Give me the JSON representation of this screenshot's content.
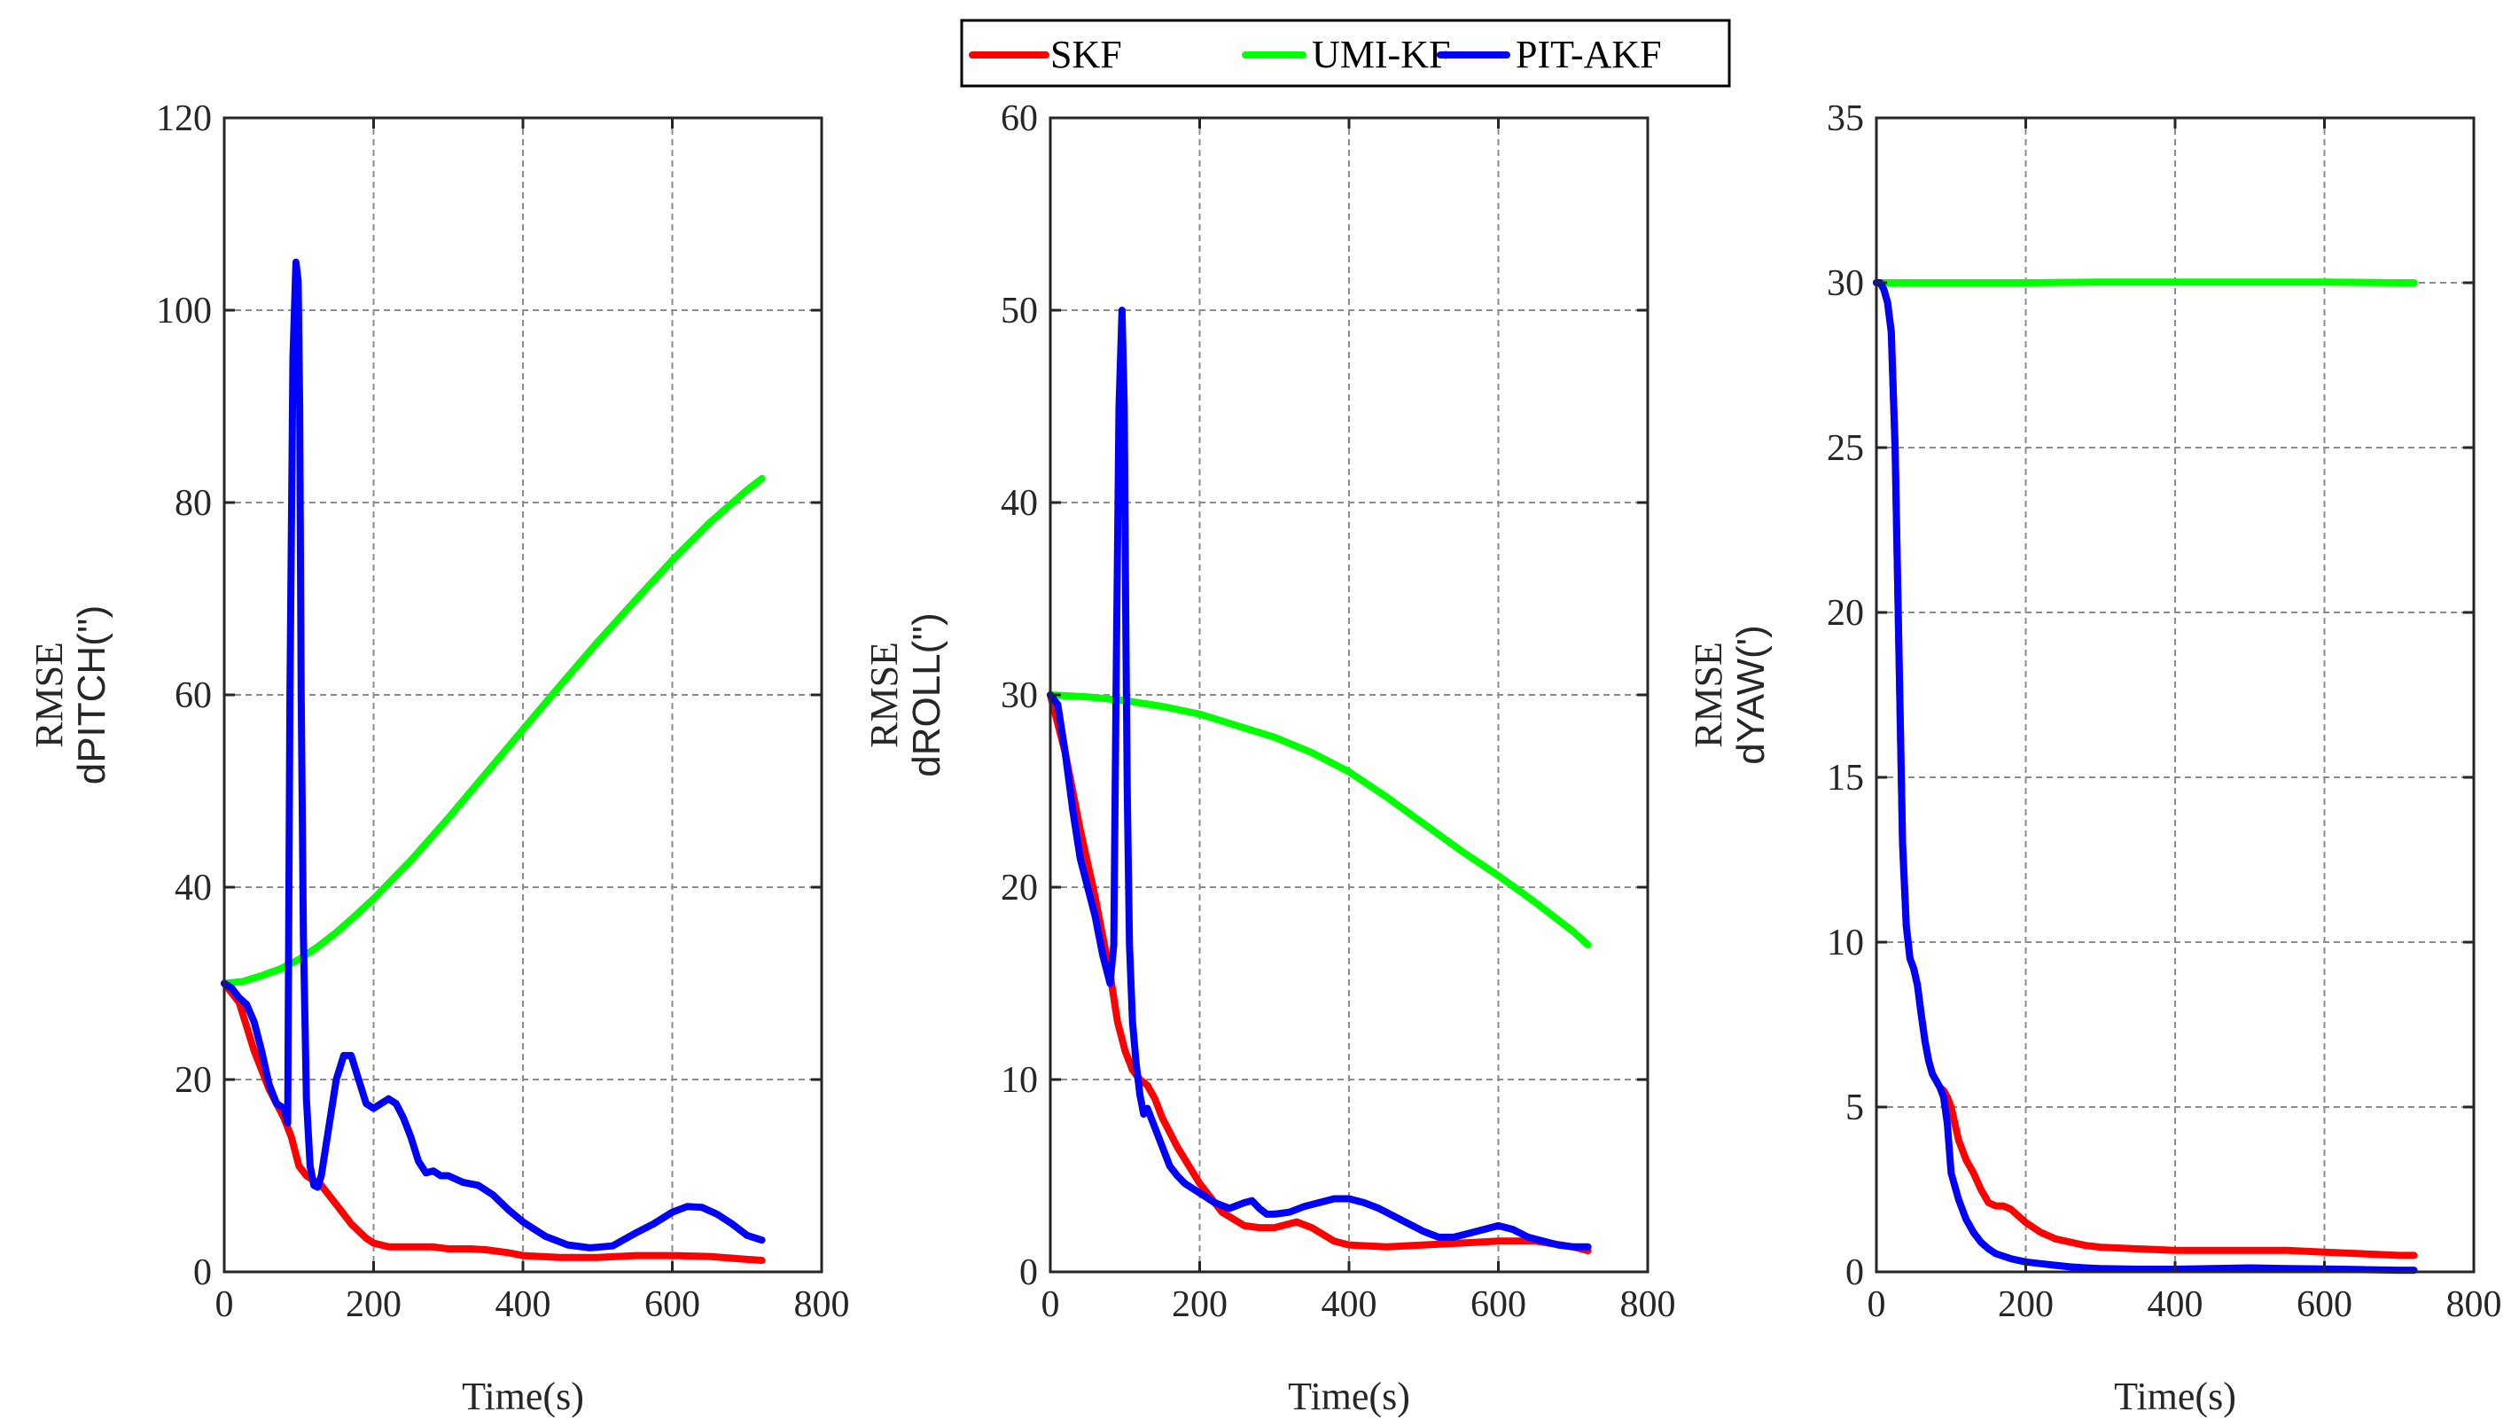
{
  "legend": {
    "entries": [
      {
        "label": "SKF",
        "color": "#ff0000"
      },
      {
        "label": "UMI-KF",
        "color": "#00ff00"
      },
      {
        "label": "PIT-AKF",
        "color": "#0000ff"
      }
    ]
  },
  "chart_data": [
    {
      "type": "line",
      "title": "",
      "xlabel": "Time(s)",
      "ylabel_line1": "RMSE",
      "ylabel_line2": "dPITCH('')",
      "xlim": [
        0,
        800
      ],
      "ylim": [
        0,
        120
      ],
      "xticks": [
        0,
        200,
        400,
        600,
        800
      ],
      "yticks": [
        0,
        20,
        40,
        60,
        80,
        100,
        120
      ],
      "grid": true,
      "series": [
        {
          "name": "SKF",
          "color": "#ff0000",
          "x": [
            0,
            20,
            40,
            60,
            80,
            90,
            100,
            110,
            120,
            130,
            150,
            170,
            190,
            200,
            220,
            250,
            280,
            300,
            330,
            350,
            380,
            400,
            450,
            500,
            550,
            600,
            650,
            700,
            720
          ],
          "y": [
            30,
            28,
            23,
            19,
            16,
            14,
            11,
            10,
            9.5,
            9,
            7,
            5,
            3.5,
            3,
            2.6,
            2.6,
            2.6,
            2.4,
            2.4,
            2.3,
            2,
            1.7,
            1.5,
            1.5,
            1.7,
            1.7,
            1.6,
            1.3,
            1.2
          ]
        },
        {
          "name": "UMI-KF",
          "color": "#00ff00",
          "x": [
            0,
            25,
            50,
            75,
            100,
            125,
            150,
            175,
            200,
            250,
            300,
            350,
            400,
            450,
            500,
            550,
            600,
            650,
            700,
            720
          ],
          "y": [
            30,
            30.2,
            30.8,
            31.5,
            32.5,
            33.8,
            35.3,
            37,
            38.8,
            42.8,
            47.2,
            51.8,
            56.4,
            61,
            65.5,
            69.8,
            74,
            77.9,
            81.3,
            82.5
          ]
        },
        {
          "name": "PIT-AKF",
          "color": "#0000ff",
          "x": [
            0,
            10,
            20,
            30,
            40,
            50,
            60,
            70,
            80,
            85,
            88,
            92,
            96,
            99,
            101,
            103,
            106,
            110,
            115,
            120,
            125,
            130,
            140,
            150,
            160,
            170,
            180,
            190,
            200,
            210,
            220,
            230,
            240,
            250,
            260,
            270,
            280,
            290,
            300,
            320,
            340,
            360,
            380,
            400,
            430,
            460,
            490,
            520,
            550,
            575,
            600,
            620,
            640,
            660,
            680,
            700,
            720
          ],
          "y": [
            30,
            29.5,
            28.5,
            27.8,
            26,
            23,
            19.5,
            17.5,
            17,
            15.5,
            60,
            95,
            105,
            103,
            90,
            60,
            35,
            18,
            11,
            9,
            8.8,
            10,
            15,
            20,
            22.5,
            22.5,
            20,
            17.5,
            17,
            17.5,
            18,
            17.5,
            16,
            14,
            11.5,
            10.3,
            10.5,
            10,
            10,
            9.3,
            9,
            8,
            6.5,
            5.2,
            3.7,
            2.8,
            2.5,
            2.7,
            4,
            5,
            6.2,
            6.8,
            6.7,
            6,
            5,
            3.8,
            3.3
          ]
        }
      ]
    },
    {
      "type": "line",
      "title": "",
      "xlabel": "Time(s)",
      "ylabel_line1": "RMSE",
      "ylabel_line2": "dROLL('')",
      "xlim": [
        0,
        800
      ],
      "ylim": [
        0,
        60
      ],
      "xticks": [
        0,
        200,
        400,
        600,
        800
      ],
      "yticks": [
        0,
        10,
        20,
        30,
        40,
        50,
        60
      ],
      "grid": true,
      "series": [
        {
          "name": "SKF",
          "color": "#ff0000",
          "x": [
            0,
            20,
            40,
            60,
            80,
            90,
            100,
            110,
            120,
            130,
            140,
            150,
            170,
            200,
            230,
            260,
            280,
            300,
            330,
            350,
            380,
            400,
            450,
            500,
            550,
            600,
            650,
            700,
            720
          ],
          "y": [
            30,
            27,
            23,
            19.5,
            15.5,
            13,
            11.5,
            10.5,
            10,
            9.7,
            9,
            8,
            6.5,
            4.6,
            3.1,
            2.4,
            2.3,
            2.3,
            2.6,
            2.3,
            1.6,
            1.4,
            1.3,
            1.4,
            1.5,
            1.6,
            1.6,
            1.3,
            1.1
          ]
        },
        {
          "name": "UMI-KF",
          "color": "#00ff00",
          "x": [
            0,
            50,
            100,
            150,
            200,
            250,
            300,
            350,
            400,
            450,
            500,
            550,
            600,
            650,
            700,
            720
          ],
          "y": [
            30,
            29.9,
            29.7,
            29.4,
            29,
            28.4,
            27.8,
            27,
            26,
            24.7,
            23.3,
            21.9,
            20.6,
            19.2,
            17.7,
            17
          ]
        },
        {
          "name": "PIT-AKF",
          "color": "#0000ff",
          "x": [
            0,
            10,
            20,
            30,
            40,
            50,
            60,
            70,
            80,
            85,
            88,
            92,
            96,
            99,
            101,
            103,
            106,
            110,
            115,
            120,
            125,
            130,
            140,
            150,
            160,
            170,
            180,
            200,
            220,
            240,
            260,
            270,
            280,
            290,
            300,
            320,
            340,
            360,
            380,
            400,
            420,
            440,
            460,
            480,
            500,
            520,
            540,
            560,
            580,
            600,
            620,
            640,
            660,
            680,
            700,
            720
          ],
          "y": [
            30,
            29.5,
            27,
            24,
            21.5,
            20,
            18.5,
            16.5,
            15,
            17,
            30,
            45,
            50,
            45,
            34,
            25,
            17,
            13,
            10.8,
            9.2,
            8.2,
            8.5,
            7.5,
            6.5,
            5.5,
            5,
            4.6,
            4.1,
            3.6,
            3.3,
            3.6,
            3.7,
            3.3,
            3,
            3,
            3.1,
            3.4,
            3.6,
            3.8,
            3.8,
            3.6,
            3.3,
            2.9,
            2.5,
            2.1,
            1.8,
            1.8,
            2,
            2.2,
            2.4,
            2.2,
            1.8,
            1.6,
            1.4,
            1.3,
            1.3
          ]
        }
      ]
    },
    {
      "type": "line",
      "title": "",
      "xlabel": "Time(s)",
      "ylabel_line1": "RMSE",
      "ylabel_line2": "dYAW(')",
      "xlim": [
        0,
        800
      ],
      "ylim": [
        0,
        35
      ],
      "xticks": [
        0,
        200,
        400,
        600,
        800
      ],
      "yticks": [
        0,
        5,
        10,
        15,
        20,
        25,
        30,
        35
      ],
      "grid": true,
      "series": [
        {
          "name": "SKF",
          "color": "#ff0000",
          "x": [
            0,
            5,
            10,
            15,
            20,
            25,
            30,
            35,
            40,
            45,
            50,
            55,
            60,
            65,
            70,
            75,
            80,
            85,
            90,
            95,
            100,
            110,
            120,
            130,
            140,
            150,
            160,
            170,
            180,
            190,
            200,
            220,
            240,
            260,
            280,
            300,
            350,
            400,
            450,
            500,
            550,
            600,
            650,
            700,
            720
          ],
          "y": [
            30,
            30,
            29.8,
            29.4,
            28.5,
            25,
            19,
            13,
            10.5,
            9.5,
            9.2,
            8.7,
            7.8,
            7,
            6.4,
            6,
            5.8,
            5.6,
            5.5,
            5.3,
            5,
            4,
            3.4,
            3,
            2.5,
            2.1,
            2,
            2,
            1.9,
            1.7,
            1.5,
            1.2,
            1,
            0.9,
            0.8,
            0.75,
            0.7,
            0.65,
            0.65,
            0.65,
            0.65,
            0.6,
            0.55,
            0.5,
            0.5
          ]
        },
        {
          "name": "UMI-KF",
          "color": "#00ff00",
          "x": [
            0,
            100,
            200,
            300,
            400,
            500,
            600,
            700,
            720
          ],
          "y": [
            30,
            30,
            30,
            30.02,
            30.02,
            30.02,
            30.02,
            30,
            30
          ]
        },
        {
          "name": "PIT-AKF",
          "color": "#0000ff",
          "x": [
            0,
            5,
            10,
            15,
            20,
            25,
            30,
            35,
            40,
            45,
            50,
            55,
            60,
            65,
            70,
            75,
            80,
            85,
            90,
            95,
            100,
            110,
            120,
            130,
            140,
            150,
            160,
            180,
            200,
            220,
            240,
            260,
            280,
            300,
            350,
            400,
            450,
            500,
            550,
            600,
            650,
            700,
            720
          ],
          "y": [
            30,
            30,
            29.8,
            29.4,
            28.5,
            25,
            19,
            13,
            10.5,
            9.5,
            9.2,
            8.7,
            7.8,
            7,
            6.4,
            6,
            5.8,
            5.6,
            5.3,
            4.5,
            3,
            2.2,
            1.6,
            1.2,
            0.9,
            0.7,
            0.55,
            0.4,
            0.3,
            0.25,
            0.2,
            0.15,
            0.12,
            0.1,
            0.08,
            0.08,
            0.1,
            0.12,
            0.1,
            0.09,
            0.07,
            0.05,
            0.05
          ]
        }
      ]
    }
  ]
}
